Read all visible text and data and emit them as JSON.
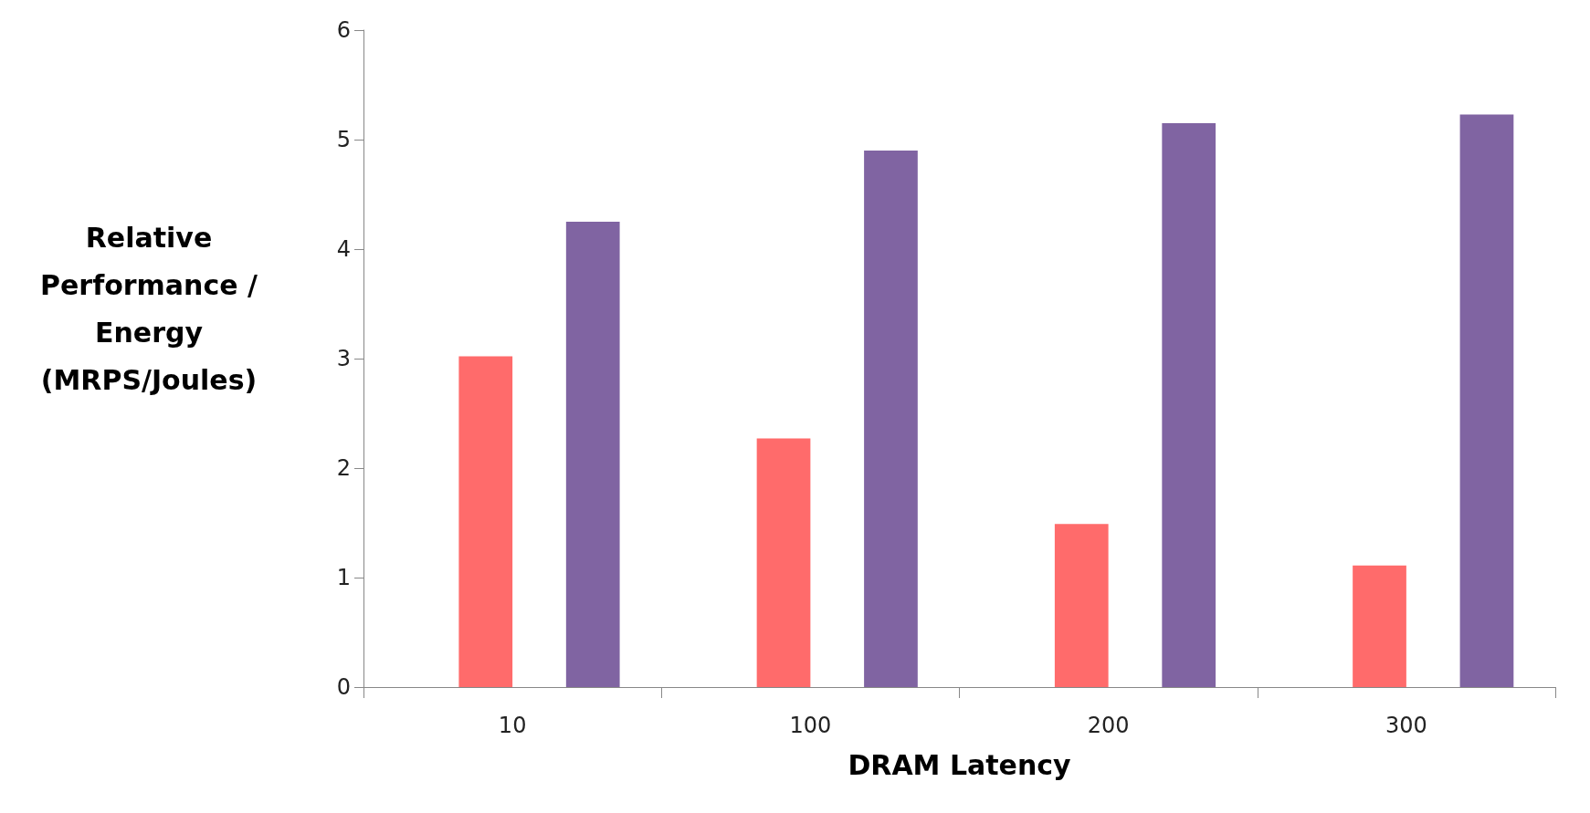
{
  "chart_data": {
    "type": "bar",
    "xlabel": "DRAM Latency",
    "ylabel": "Relative\nPerformance /\nEnergy\n(MRPS/Joules)",
    "categories": [
      "10",
      "100",
      "200",
      "300"
    ],
    "series": [
      {
        "color": "#4f81bd",
        "values": [
          0,
          0,
          0,
          0
        ]
      },
      {
        "color": "#ff6b6b",
        "values": [
          3.02,
          2.27,
          1.49,
          1.11
        ]
      },
      {
        "color": "#9bbb59",
        "values": [
          0,
          0,
          0,
          0
        ]
      },
      {
        "color": "#8064a2",
        "values": [
          4.25,
          4.9,
          5.15,
          5.23
        ]
      }
    ],
    "ylim": [
      0,
      6
    ],
    "yticks": [
      0,
      1,
      2,
      3,
      4,
      5,
      6
    ],
    "grid": false
  }
}
